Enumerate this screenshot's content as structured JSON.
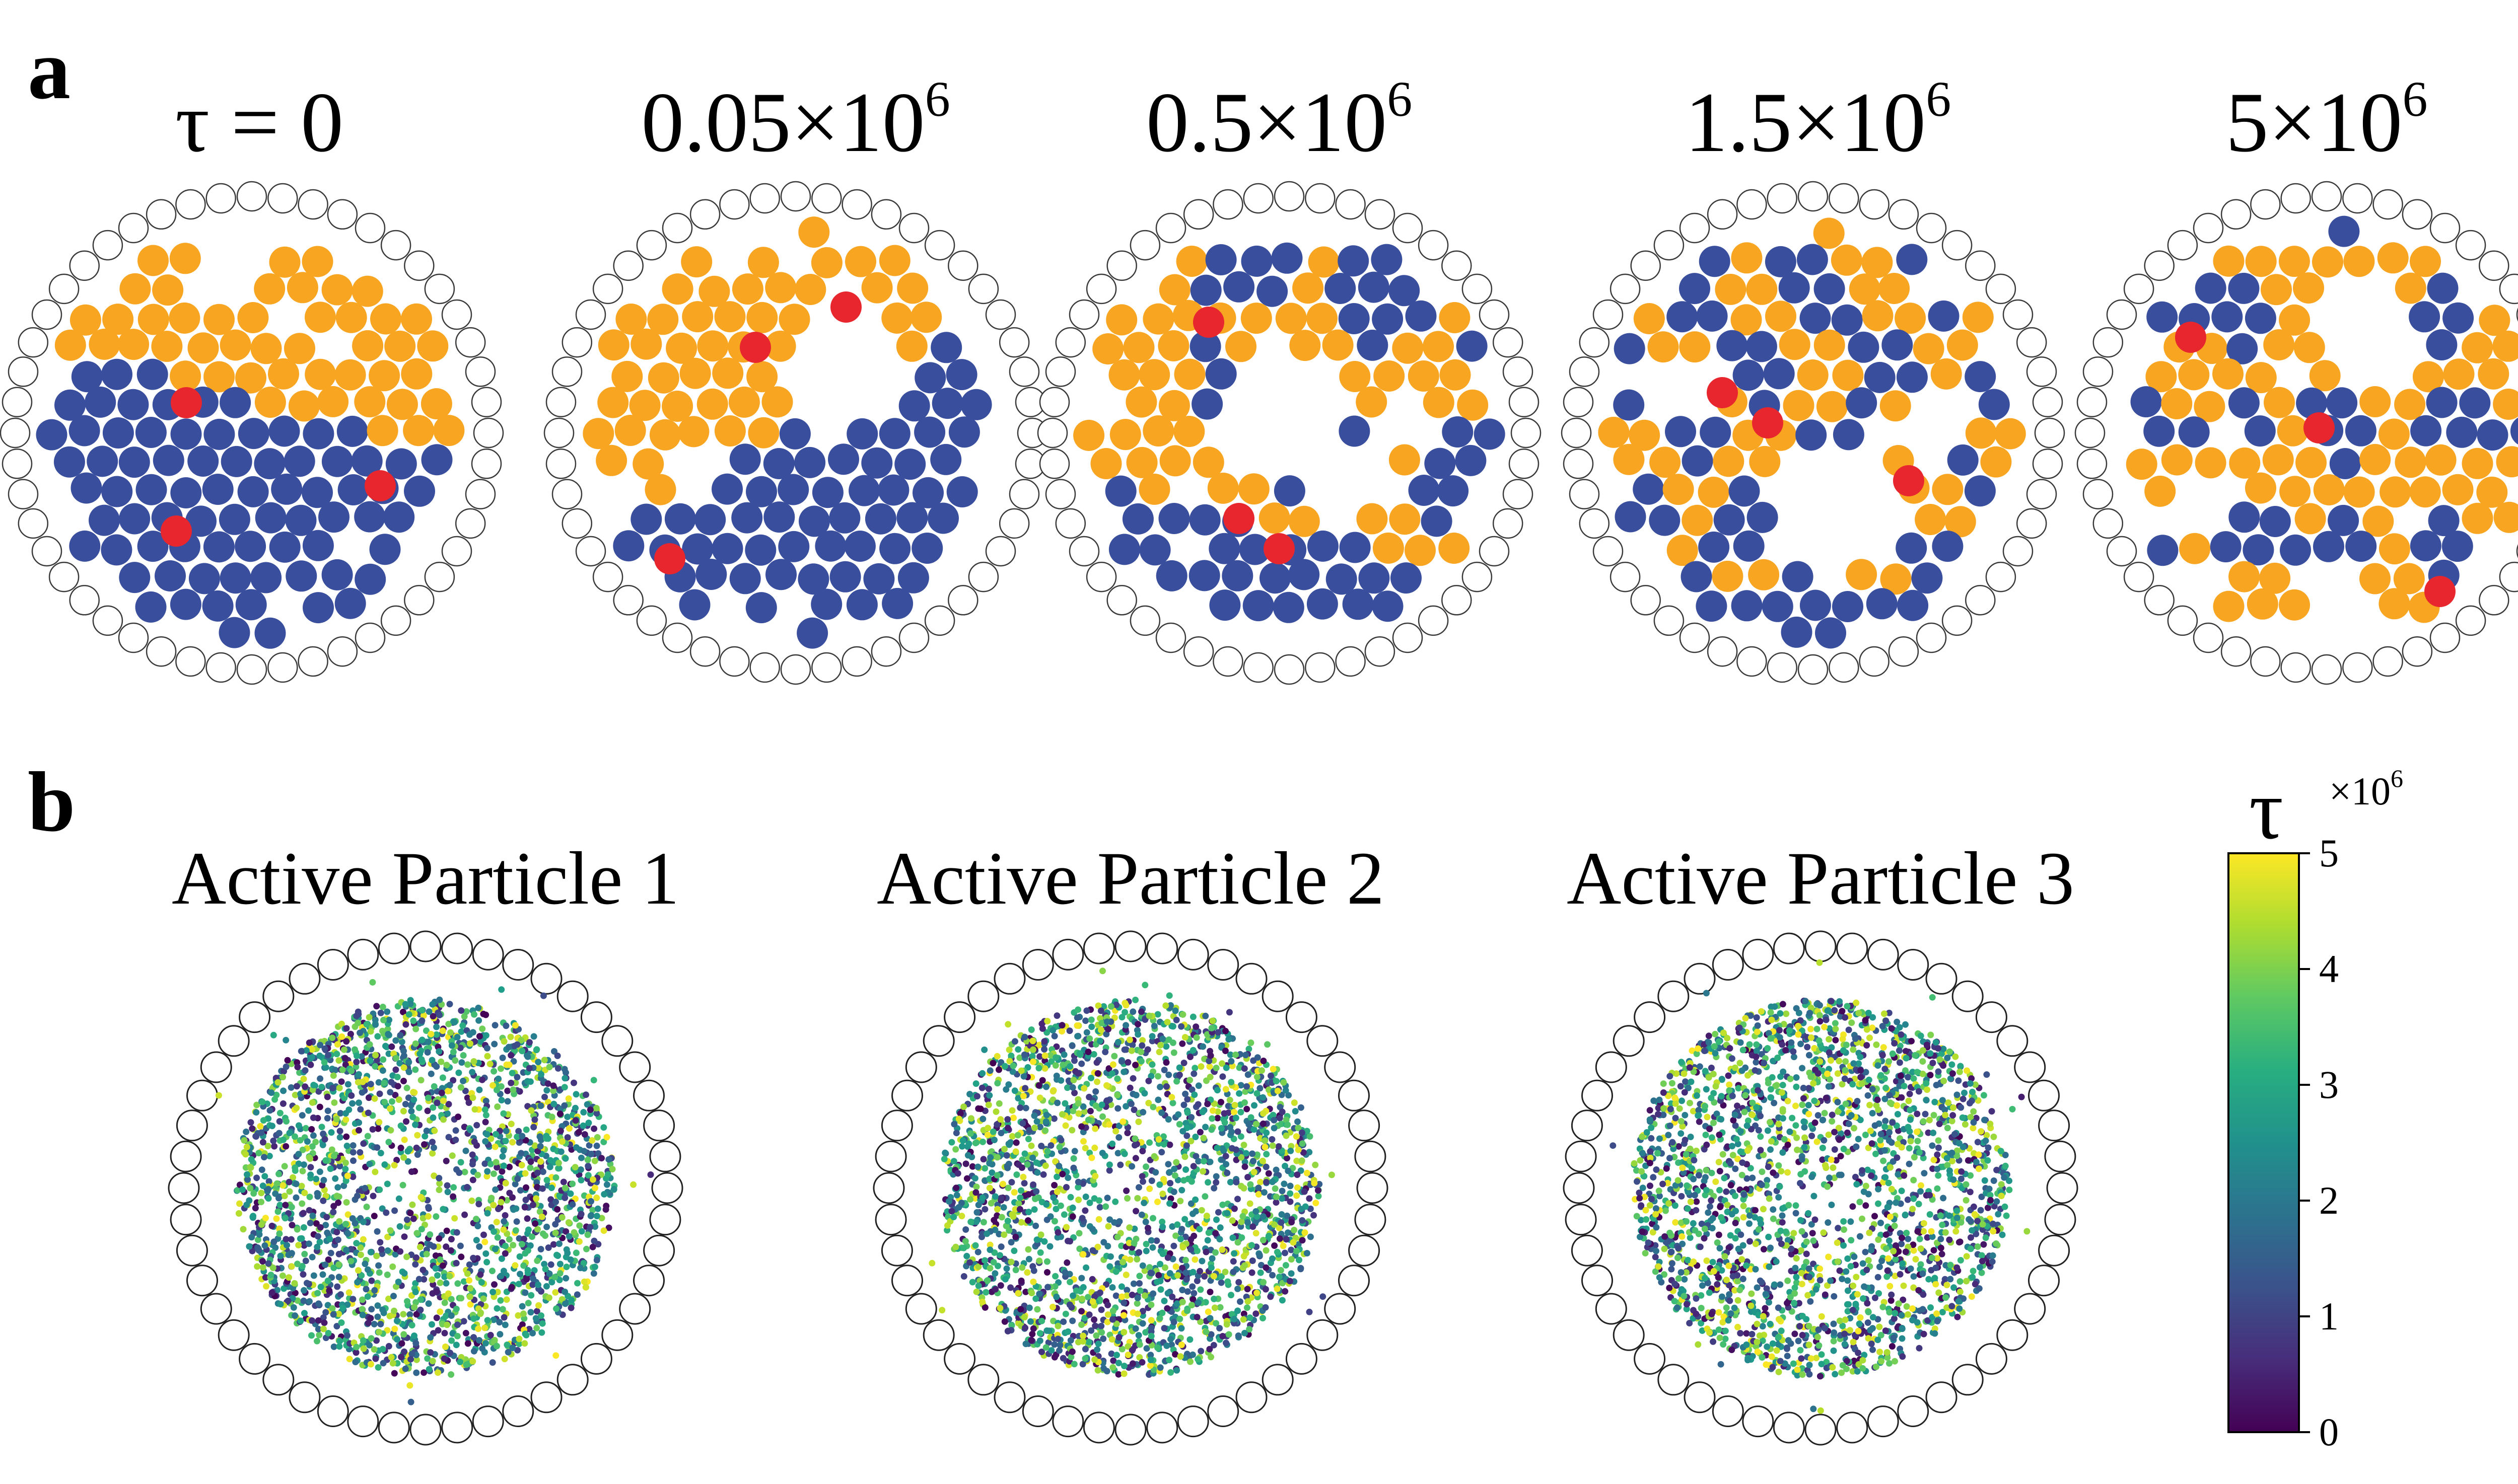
{
  "figure": {
    "panel_a_letter": "a",
    "panel_b_letter": "b",
    "colors": {
      "orange_particle": "#F8A521",
      "blue_particle": "#3A4E9E",
      "active_particle": "#E8262E",
      "boundary_outline": "#3a3a3a"
    }
  },
  "panel_a": {
    "snapshots": [
      {
        "label_main": "τ = 0",
        "label_sup": ""
      },
      {
        "label_main": "0.05×10",
        "label_sup": "6"
      },
      {
        "label_main": "0.5×10",
        "label_sup": "6"
      },
      {
        "label_main": "1.5×10",
        "label_sup": "6"
      },
      {
        "label_main": "5×10",
        "label_sup": "6"
      }
    ]
  },
  "panel_b": {
    "titles": [
      "Active Particle 1",
      "Active Particle 2",
      "Active Particle 3"
    ]
  },
  "colorbar": {
    "title": "τ",
    "exponent_main": "×10",
    "exponent_sup": "6",
    "ticks": [
      0,
      1,
      2,
      3,
      4,
      5
    ],
    "tick_labels": [
      "0",
      "1",
      "2",
      "3",
      "4",
      "5"
    ],
    "colormap": "viridis"
  }
}
